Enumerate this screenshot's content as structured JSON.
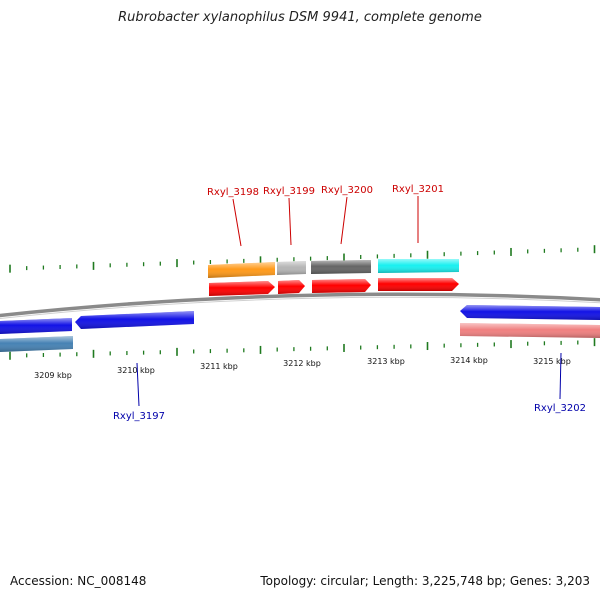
{
  "title": "Rubrobacter xylanophilus DSM 9941, complete genome",
  "footer": {
    "accession": "Accession: NC_008148",
    "summary": "Topology: circular; Length: 3,225,748 bp; Genes: 3,203"
  },
  "colors": {
    "backbone": "#808080",
    "tick": "#1f7a1f",
    "forward_label": "#cc0000",
    "reverse_label": "#0000aa"
  },
  "scale_labels": [
    "3209 kbp",
    "3210 kbp",
    "3211 kbp",
    "3212 kbp",
    "3213 kbp",
    "3214 kbp",
    "3215 kbp"
  ],
  "genes_forward": [
    {
      "label": "Rxyl_3198",
      "color": "#ff9a1a"
    },
    {
      "label": "Rxyl_3199",
      "color": "#b5b5b5"
    },
    {
      "label": "Rxyl_3200",
      "color": "#666666"
    },
    {
      "label": "Rxyl_3201",
      "color": "#19f0f0"
    }
  ],
  "genes_reverse": [
    {
      "label": "Rxyl_3197",
      "color": "#1212e6"
    },
    {
      "label": "Rxyl_3202",
      "color": "#1212e6"
    }
  ]
}
